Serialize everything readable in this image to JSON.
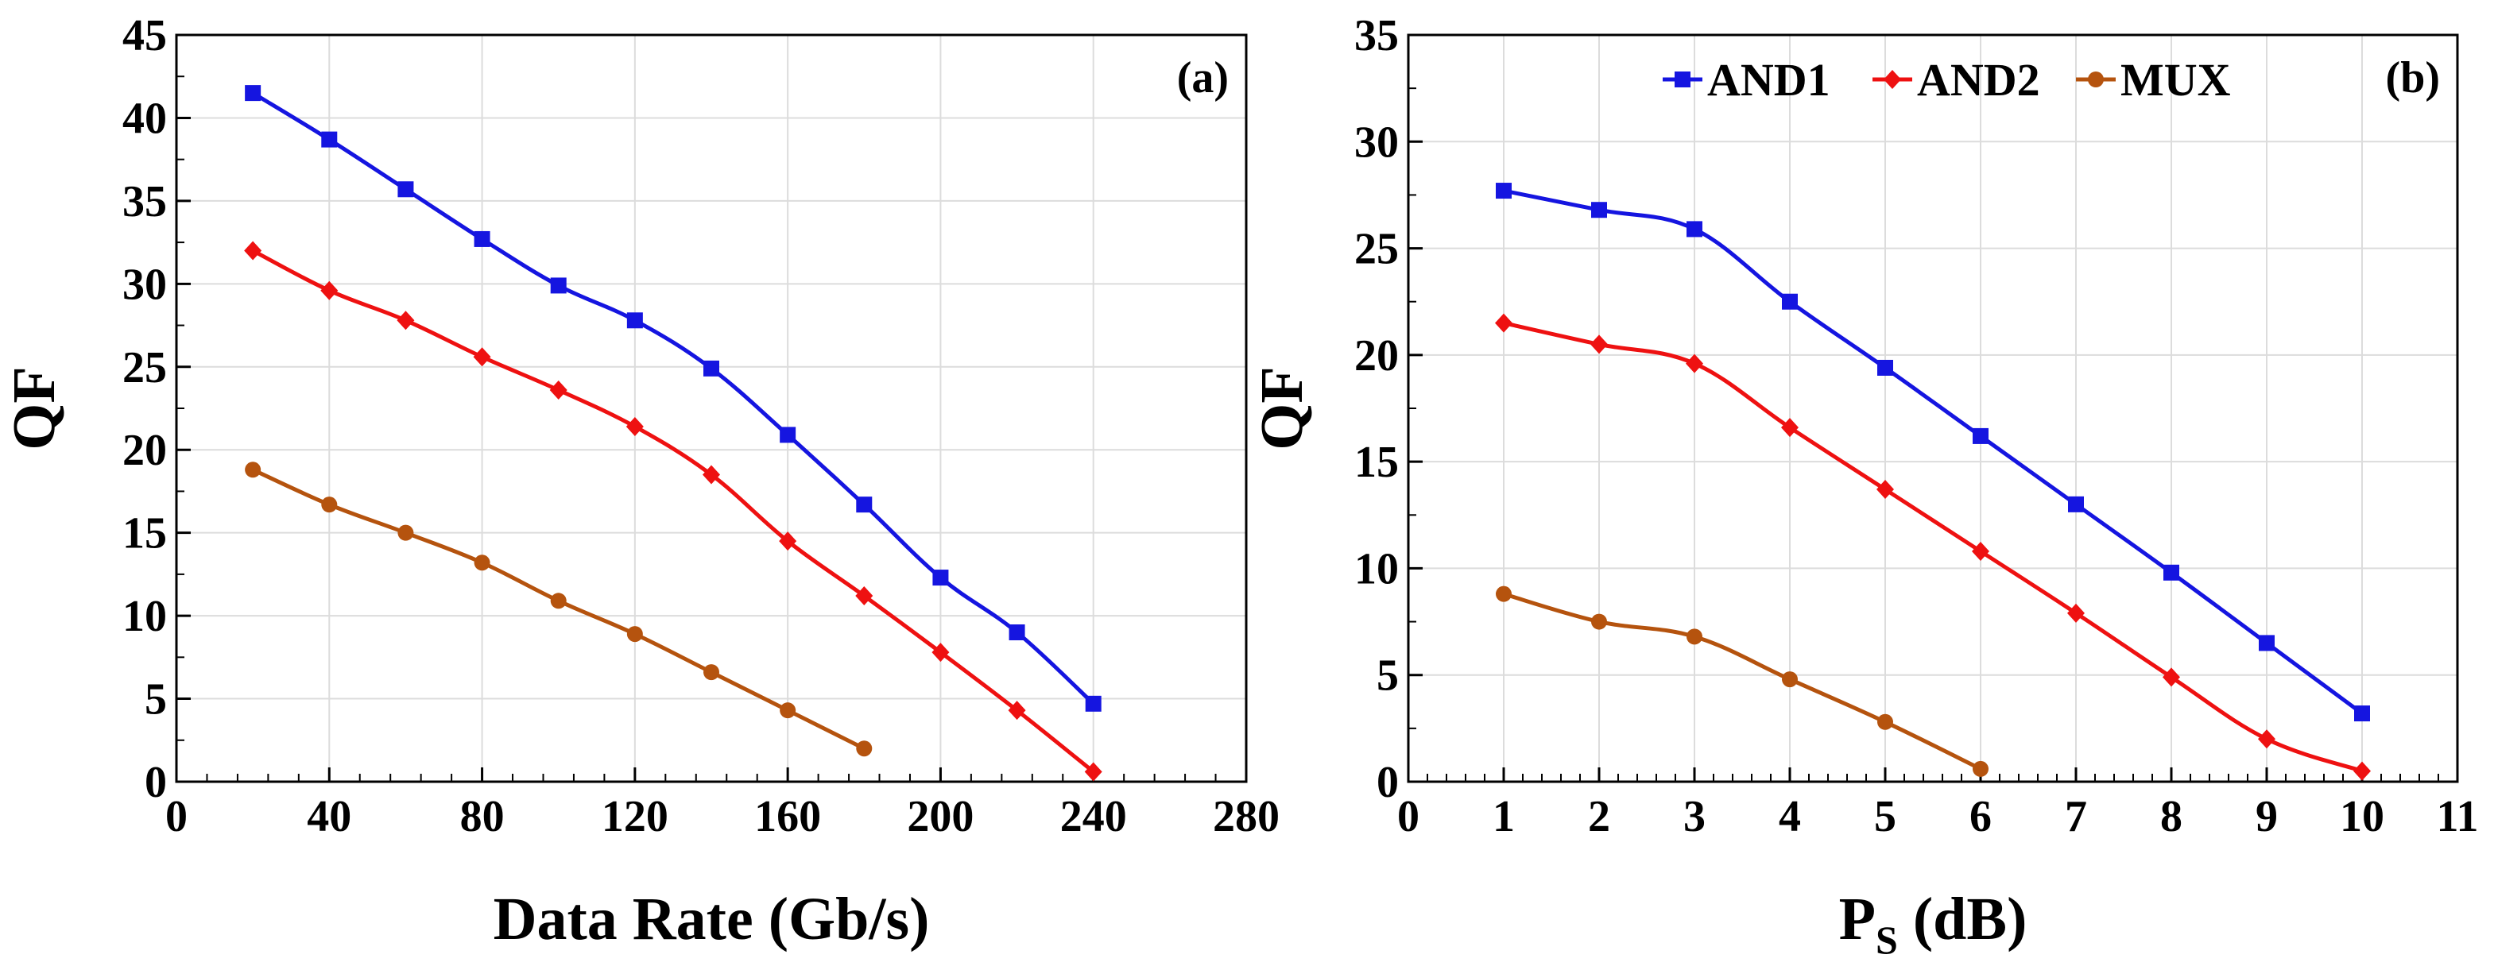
{
  "chart_data": [
    {
      "type": "line",
      "panel_label": "(a)",
      "xlabel": "Data Rate (Gb/s)",
      "ylabel": "QF",
      "xlim": [
        0,
        280
      ],
      "ylim": [
        0,
        45
      ],
      "xticks": [
        0,
        40,
        80,
        120,
        160,
        200,
        240,
        280
      ],
      "yticks": [
        0,
        5,
        10,
        15,
        20,
        25,
        30,
        35,
        40,
        45
      ],
      "grid": true,
      "series": [
        {
          "name": "AND1",
          "color": "#1515e0",
          "marker": "square",
          "x": [
            20,
            40,
            60,
            80,
            100,
            120,
            140,
            160,
            180,
            200,
            220,
            240
          ],
          "y": [
            41.5,
            38.7,
            35.7,
            32.7,
            29.9,
            27.8,
            24.9,
            20.9,
            16.7,
            12.3,
            9.0,
            4.7
          ]
        },
        {
          "name": "AND2",
          "color": "#ee1111",
          "marker": "diamond",
          "x": [
            20,
            40,
            60,
            80,
            100,
            120,
            140,
            160,
            180,
            200,
            220,
            240
          ],
          "y": [
            32.0,
            29.6,
            27.8,
            25.6,
            23.6,
            21.4,
            18.5,
            14.5,
            11.2,
            7.8,
            4.3,
            0.6
          ]
        },
        {
          "name": "MUX",
          "color": "#b5530e",
          "marker": "circle",
          "x": [
            20,
            40,
            60,
            80,
            100,
            120,
            140,
            160,
            180
          ],
          "y": [
            18.8,
            16.7,
            15.0,
            13.2,
            10.9,
            8.9,
            6.6,
            4.3,
            2.0
          ]
        }
      ]
    },
    {
      "type": "line",
      "panel_label": "(b)",
      "xlabel_main": "P",
      "xlabel_sub": "S",
      "xlabel_rest": " (dB)",
      "ylabel": "QF",
      "xlim": [
        0,
        11
      ],
      "ylim": [
        0,
        35
      ],
      "xticks": [
        0,
        1,
        2,
        3,
        4,
        5,
        6,
        7,
        8,
        9,
        10,
        11
      ],
      "yticks": [
        0,
        5,
        10,
        15,
        20,
        25,
        30,
        35
      ],
      "grid": true,
      "legend": "top",
      "series": [
        {
          "name": "AND1",
          "color": "#1515e0",
          "marker": "square",
          "x": [
            1,
            2,
            3,
            4,
            5,
            6,
            7,
            8,
            9,
            10
          ],
          "y": [
            27.7,
            26.8,
            25.9,
            22.5,
            19.4,
            16.2,
            13.0,
            9.8,
            6.5,
            3.2
          ]
        },
        {
          "name": "AND2",
          "color": "#ee1111",
          "marker": "diamond",
          "x": [
            1,
            2,
            3,
            4,
            5,
            6,
            7,
            8,
            9,
            10
          ],
          "y": [
            21.5,
            20.5,
            19.6,
            16.6,
            13.7,
            10.8,
            7.9,
            4.9,
            2.0,
            0.5
          ]
        },
        {
          "name": "MUX",
          "color": "#b5530e",
          "marker": "circle",
          "x": [
            1,
            2,
            3,
            4,
            5,
            6
          ],
          "y": [
            8.8,
            7.5,
            6.8,
            4.8,
            2.8,
            0.6
          ]
        }
      ]
    }
  ]
}
